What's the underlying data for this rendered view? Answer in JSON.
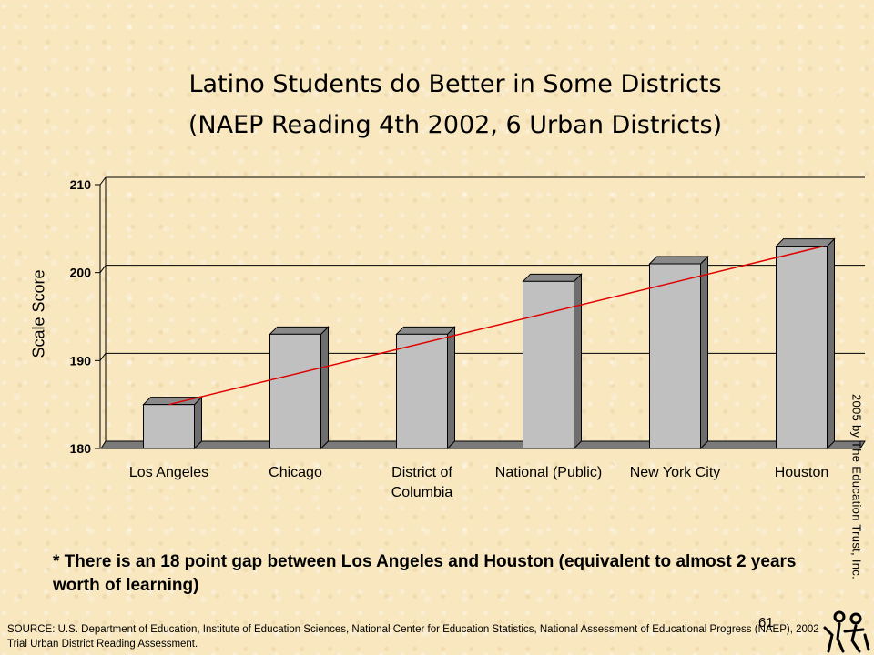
{
  "title_lines": [
    "Latino Students do Better in Some Districts",
    "(NAEP Reading 4th 2002, 6 Urban Districts)"
  ],
  "note": "* There is an 18 point gap between Los Angeles and Houston (equivalent to almost 2 years worth of learning)",
  "source": "SOURCE: U.S. Department of Education, Institute of Education Sciences, National Center for Education Statistics, National Assessment of Educational Progress (NAEP), 2002 Trial Urban District Reading Assessment.",
  "page_number": "61",
  "copyright": "2005 by The Education Trust, Inc.",
  "colors": {
    "bar": "#c0c0c0",
    "trend_line": "#e00000",
    "background": "#f8e7bf"
  },
  "chart_data": {
    "type": "bar",
    "title": "Latino Students do Better in Some Districts (NAEP Reading 4th 2002, 6 Urban Districts)",
    "xlabel": "",
    "ylabel": "Scale Score",
    "categories": [
      "Los Angeles",
      "Chicago",
      "District of Columbia",
      "National (Public)",
      "New York City",
      "Houston"
    ],
    "category_label_lines": [
      [
        "Los Angeles"
      ],
      [
        "Chicago"
      ],
      [
        "District of",
        "Columbia"
      ],
      [
        "National (Public)"
      ],
      [
        "New York City"
      ],
      [
        "Houston"
      ]
    ],
    "values": [
      185,
      193,
      193,
      199,
      201,
      203
    ],
    "ylim": [
      180,
      210
    ],
    "yticks": [
      180,
      190,
      200,
      210
    ],
    "grid": true,
    "trend_line": {
      "from_category": "Los Angeles",
      "to_category": "Houston",
      "from_value": 185,
      "to_value": 203
    }
  }
}
